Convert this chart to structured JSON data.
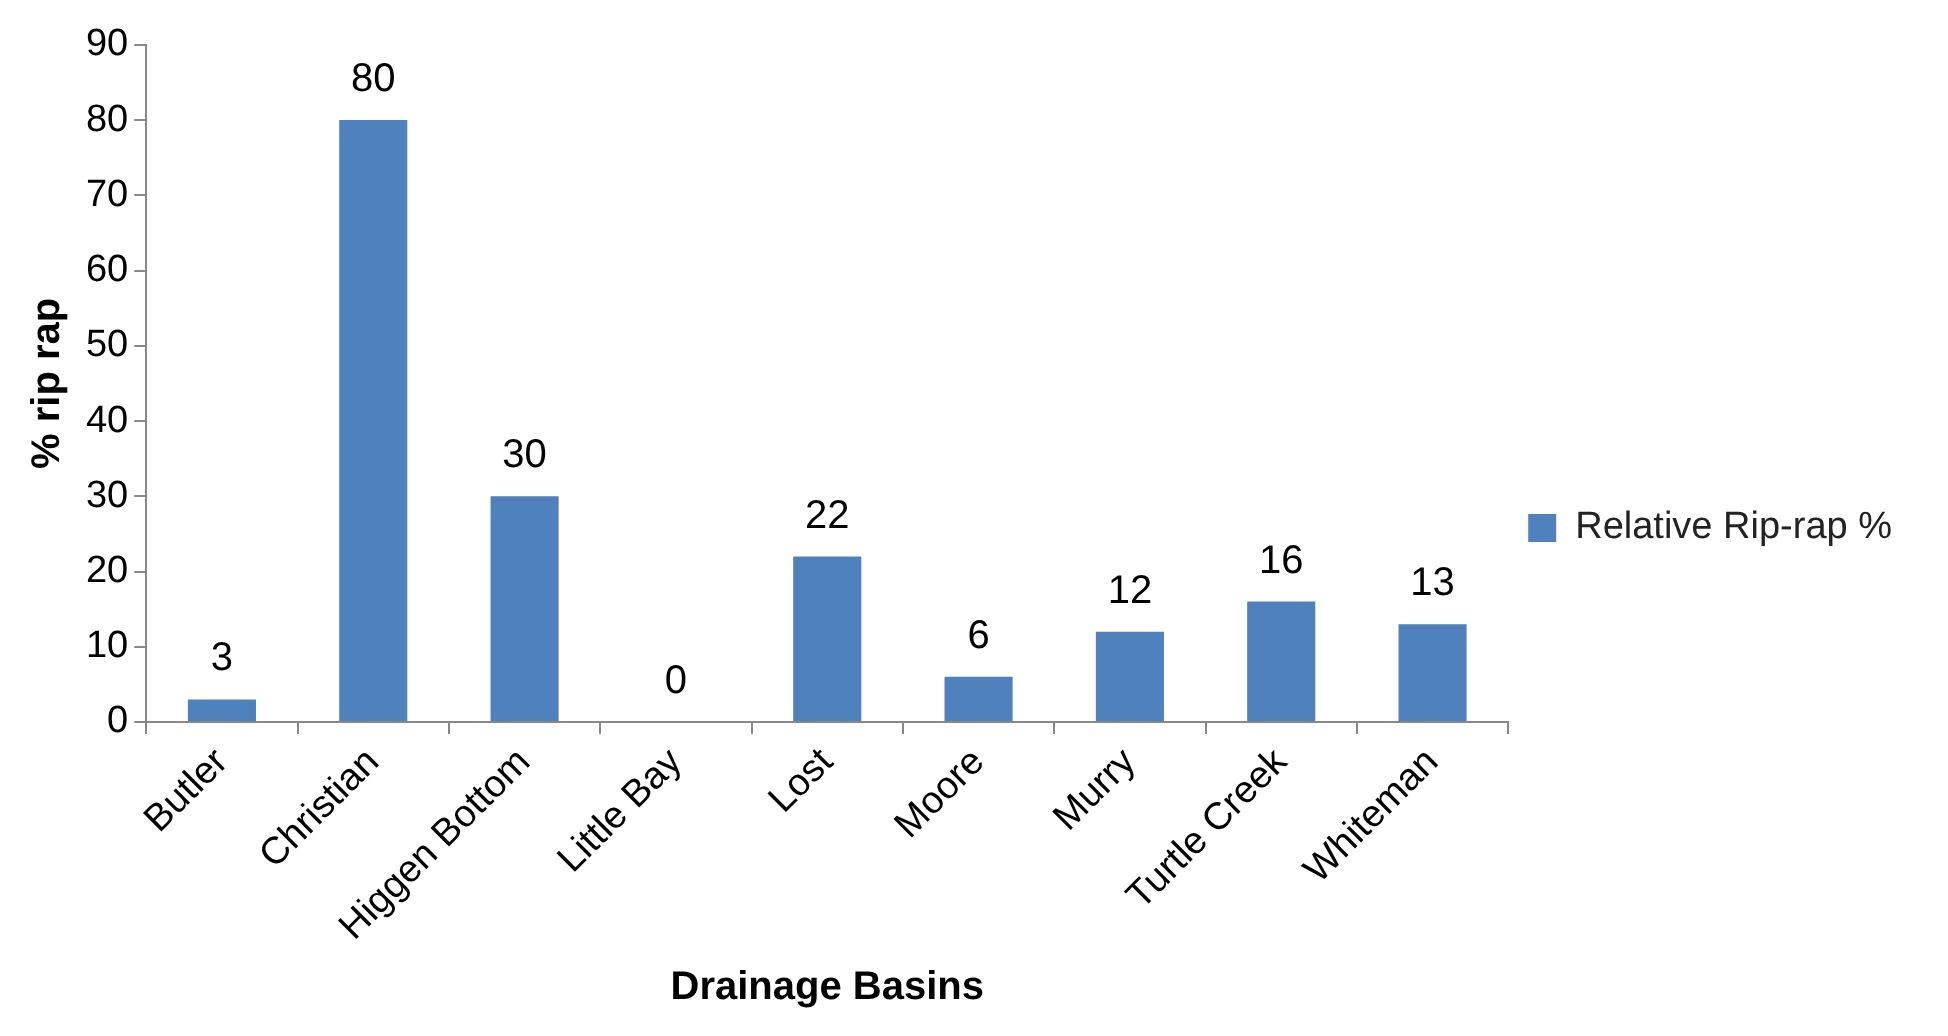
{
  "chart_data": {
    "type": "bar",
    "xlabel": "Drainage Basins",
    "ylabel": "% rip rap",
    "categories": [
      "Butler",
      "Christian",
      "Higgen Bottom",
      "Little Bay",
      "Lost",
      "Moore",
      "Murry",
      "Turtle Creek",
      "Whiteman"
    ],
    "series": [
      {
        "name": "Relative Rip-rap %",
        "color": "#4f81bd",
        "values": [
          3,
          80,
          30,
          0,
          22,
          6,
          12,
          16,
          13
        ]
      }
    ],
    "ylim": [
      0,
      90
    ],
    "yticks": [
      0,
      10,
      20,
      30,
      40,
      50,
      60,
      70,
      80,
      90
    ],
    "grid": false,
    "legend": "right",
    "data_labels": true
  }
}
